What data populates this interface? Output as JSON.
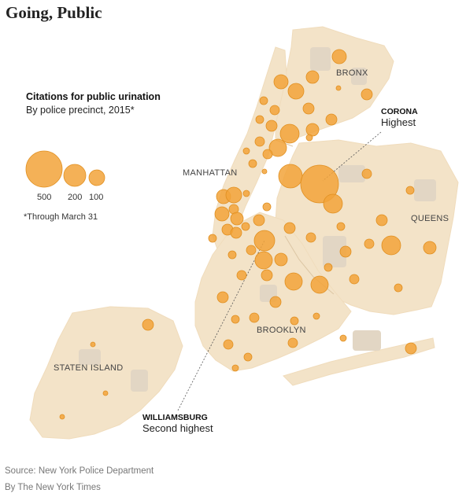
{
  "title": "Going, Public",
  "legend": {
    "title": "Citations for public urination",
    "subtitle": "By police precinct, 2015*",
    "sizes": [
      "500",
      "200",
      "100"
    ],
    "footnote": "*Through March 31"
  },
  "boroughs": {
    "bronx": "BRONX",
    "manhattan": "MANHATTAN",
    "queens": "QUEENS",
    "brooklyn": "BROOKLYN",
    "staten_island": "STATEN ISLAND"
  },
  "callouts": {
    "corona": {
      "name": "CORONA",
      "desc": "Highest"
    },
    "williamsburg": {
      "name": "WILLIAMSBURG",
      "desc": "Second highest"
    }
  },
  "source": "Source: New York Police Department",
  "credit": "By The New York Times",
  "colors": {
    "land": "#f3e3c8",
    "park": "#e2d6c4",
    "bubble": "#f2a33a",
    "bubble_stroke": "#e08f20",
    "water_line": "#dcc6a4"
  }
}
